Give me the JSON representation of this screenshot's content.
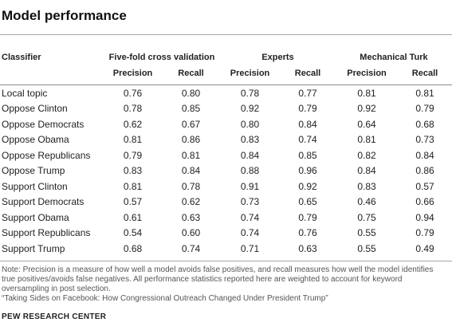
{
  "title": "Model performance",
  "table": {
    "classifier_header": "Classifier",
    "groups": [
      "Five-fold cross validation",
      "Experts",
      "Mechanical Turk"
    ],
    "subheaders": [
      "Precision",
      "Recall",
      "Precision",
      "Recall",
      "Precision",
      "Recall"
    ],
    "rows": [
      {
        "label": "Local topic",
        "values": [
          "0.76",
          "0.80",
          "0.78",
          "0.77",
          "0.81",
          "0.81"
        ]
      },
      {
        "label": "Oppose Clinton",
        "values": [
          "0.78",
          "0.85",
          "0.92",
          "0.79",
          "0.92",
          "0.79"
        ]
      },
      {
        "label": "Oppose Democrats",
        "values": [
          "0.62",
          "0.67",
          "0.80",
          "0.84",
          "0.64",
          "0.68"
        ]
      },
      {
        "label": "Oppose Obama",
        "values": [
          "0.81",
          "0.86",
          "0.83",
          "0.74",
          "0.81",
          "0.73"
        ]
      },
      {
        "label": "Oppose Republicans",
        "values": [
          "0.79",
          "0.81",
          "0.84",
          "0.85",
          "0.82",
          "0.84"
        ]
      },
      {
        "label": "Oppose Trump",
        "values": [
          "0.83",
          "0.84",
          "0.88",
          "0.96",
          "0.84",
          "0.86"
        ]
      },
      {
        "label": "Support Clinton",
        "values": [
          "0.81",
          "0.78",
          "0.91",
          "0.92",
          "0.83",
          "0.57"
        ]
      },
      {
        "label": "Support Democrats",
        "values": [
          "0.57",
          "0.62",
          "0.73",
          "0.65",
          "0.46",
          "0.66"
        ]
      },
      {
        "label": "Support Obama",
        "values": [
          "0.61",
          "0.63",
          "0.74",
          "0.79",
          "0.75",
          "0.94"
        ]
      },
      {
        "label": "Support Republicans",
        "values": [
          "0.54",
          "0.60",
          "0.74",
          "0.76",
          "0.55",
          "0.79"
        ]
      },
      {
        "label": "Support Trump",
        "values": [
          "0.68",
          "0.74",
          "0.71",
          "0.63",
          "0.55",
          "0.49"
        ]
      }
    ]
  },
  "note": "Note: Precision is a measure of how well a model avoids false positives, and recall measures how well the model identifies true positives/avoids false negatives. All performance statistics reported here are weighted to account for keyword oversampling in post selection.",
  "source": "“Taking Sides on Facebook: How Congressional Outreach Changed Under President Trump”",
  "org": "PEW RESEARCH CENTER"
}
